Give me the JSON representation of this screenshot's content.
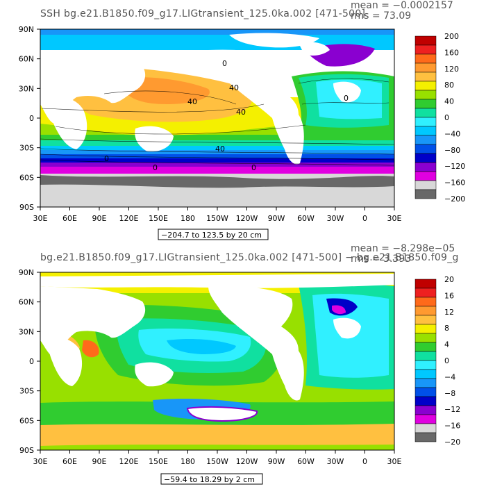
{
  "chart_data": [
    {
      "type": "heatmap",
      "title": "SSH  bg.e21.B1850.f09_g17.LIGtransient_125.0ka.002  [471-500]",
      "stats": {
        "mean": "mean = −0.0002157",
        "rms": "rms =   73.09"
      },
      "range_label": "−204.7 to 123.5 by 20 cm",
      "xticks": [
        "30E",
        "60E",
        "90E",
        "120E",
        "150E",
        "180",
        "150W",
        "120W",
        "90W",
        "60W",
        "30W",
        "0",
        "30E"
      ],
      "yticks": [
        "90N",
        "60N",
        "30N",
        "0",
        "30S",
        "60S",
        "90S"
      ],
      "colorbar": {
        "labels": [
          "200",
          "160",
          "120",
          "80",
          "40",
          "0",
          "−40",
          "−80",
          "−120",
          "−160",
          "−200"
        ],
        "colors": [
          "#c00000",
          "#ee2020",
          "#ff6a1a",
          "#ff9a30",
          "#ffc040",
          "#f4f000",
          "#98e000",
          "#30cc30",
          "#10e0a0",
          "#30f0ff",
          "#00c8ff",
          "#1896f8",
          "#0050e8",
          "#0000c8",
          "#8a00d0",
          "#e000e0",
          "#d8d8d8",
          "#686868"
        ]
      },
      "contour_labels": [
        "0",
        "40",
        "40",
        "40",
        "40",
        "0",
        "0",
        "0",
        "0"
      ],
      "xlim": [
        "30E",
        "30E"
      ],
      "ylim": [
        "90S",
        "90N"
      ]
    },
    {
      "type": "heatmap",
      "title": "bg.e21.B1850.f09_g17.LIGtransient_125.0ka.002  [471-500] − bg.e21.B1850.f09_g",
      "stats": {
        "mean": "mean = −8.298e−05",
        "rms": "rms =   3.393"
      },
      "range_label": "−59.4 to 18.29 by 2 cm",
      "xticks": [
        "30E",
        "60E",
        "90E",
        "120E",
        "150E",
        "180",
        "150W",
        "120W",
        "90W",
        "60W",
        "30W",
        "0",
        "30E"
      ],
      "yticks": [
        "90N",
        "60N",
        "30N",
        "0",
        "30S",
        "60S",
        "90S"
      ],
      "colorbar": {
        "labels": [
          "20",
          "16",
          "12",
          "8",
          "4",
          "0",
          "−4",
          "−8",
          "−12",
          "−16",
          "−20"
        ],
        "colors": [
          "#c00000",
          "#ee2020",
          "#ff6a1a",
          "#ff9a30",
          "#ffc040",
          "#f4f000",
          "#98e000",
          "#30cc30",
          "#10e0a0",
          "#30f0ff",
          "#00c8ff",
          "#1896f8",
          "#0050e8",
          "#0000c8",
          "#8a00d0",
          "#e000e0",
          "#d8d8d8",
          "#686868"
        ]
      },
      "xlim": [
        "30E",
        "30E"
      ],
      "ylim": [
        "90S",
        "90N"
      ]
    }
  ]
}
